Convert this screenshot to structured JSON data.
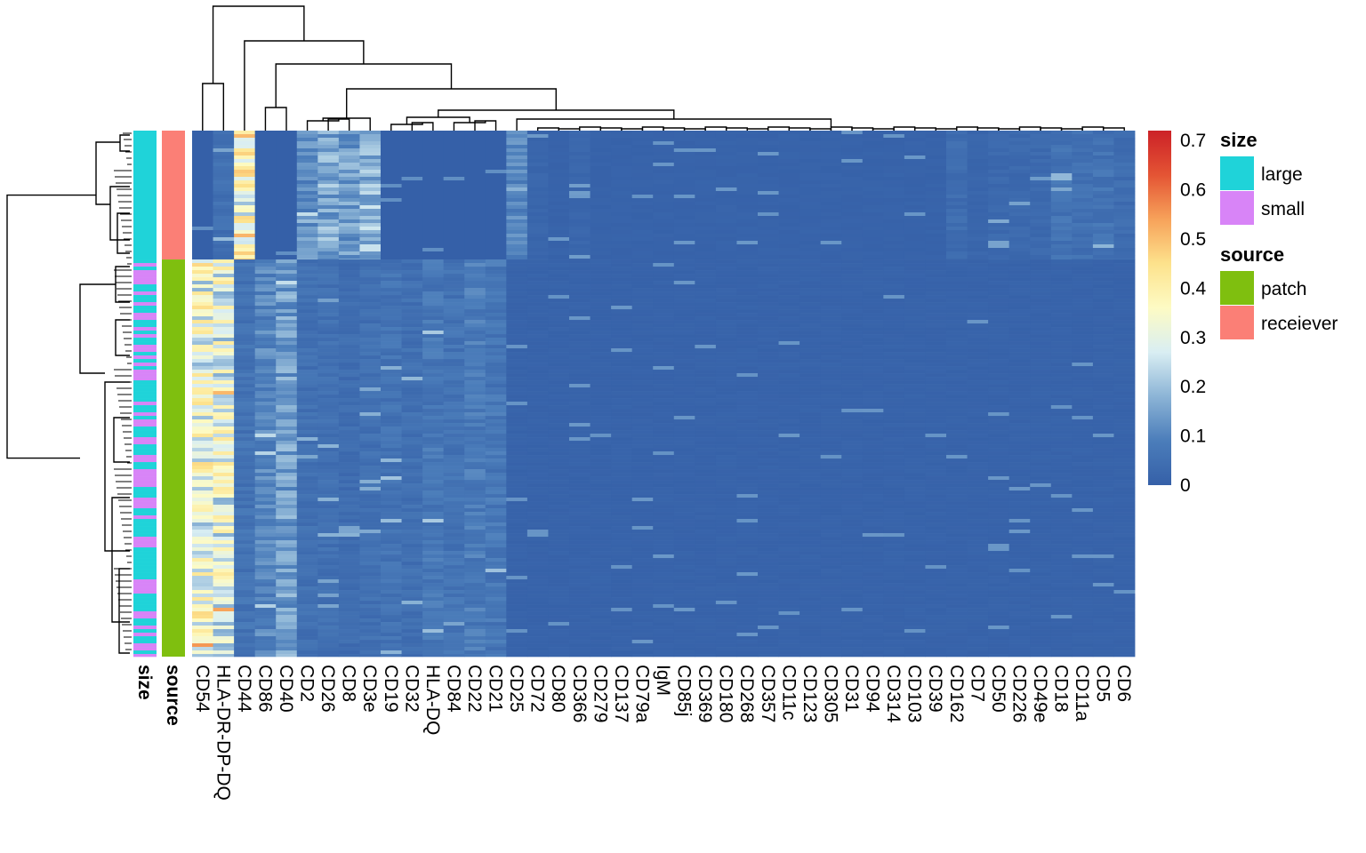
{
  "chart_data": {
    "type": "heatmap",
    "title": "",
    "xlabel": "",
    "ylabel": "",
    "columns": [
      "CD54",
      "HLA-DR-DP-DQ",
      "CD44",
      "CD86",
      "CD40",
      "CD2",
      "CD26",
      "CD8",
      "CD3e",
      "CD19",
      "CD32",
      "HLA-DQ",
      "CD84",
      "CD22",
      "CD21",
      "CD25",
      "CD72",
      "CD80",
      "CD366",
      "CD279",
      "CD137",
      "CD79a",
      "IgM",
      "CD85j",
      "CD369",
      "CD180",
      "CD268",
      "CD357",
      "CD11c",
      "CD123",
      "CD305",
      "CD31",
      "CD94",
      "CD314",
      "CD103",
      "CD39",
      "CD162",
      "CD7",
      "CD50",
      "CD226",
      "CD49e",
      "CD18",
      "CD11a",
      "CD5",
      "CD6"
    ],
    "row_groups": [
      {
        "source": "receiever",
        "size": "large",
        "fraction": 0.245,
        "column_means": [
          0.0,
          0.05,
          0.35,
          0.0,
          0.0,
          0.12,
          0.16,
          0.14,
          0.18,
          0.0,
          0.0,
          0.0,
          0.0,
          0.0,
          0.0,
          0.1,
          0.02,
          0.01,
          0.02,
          0.01,
          0.01,
          0.01,
          0.01,
          0.01,
          0.01,
          0.01,
          0.01,
          0.01,
          0.01,
          0.01,
          0.01,
          0.01,
          0.01,
          0.01,
          0.01,
          0.01,
          0.04,
          0.02,
          0.03,
          0.03,
          0.03,
          0.06,
          0.05,
          0.06,
          0.04
        ]
      },
      {
        "source": "patch",
        "size": "mixed",
        "fraction": 0.755,
        "column_means": [
          0.32,
          0.3,
          0.06,
          0.1,
          0.14,
          0.05,
          0.05,
          0.04,
          0.05,
          0.06,
          0.05,
          0.07,
          0.06,
          0.08,
          0.07,
          0.01,
          0.01,
          0.01,
          0.01,
          0.01,
          0.01,
          0.01,
          0.01,
          0.01,
          0.01,
          0.01,
          0.01,
          0.01,
          0.01,
          0.01,
          0.01,
          0.01,
          0.01,
          0.01,
          0.01,
          0.01,
          0.01,
          0.01,
          0.01,
          0.01,
          0.01,
          0.01,
          0.01,
          0.01,
          0.01
        ]
      }
    ],
    "row_annotations": [
      "size",
      "source"
    ],
    "color_scale": {
      "min": 0,
      "max": 0.72,
      "ticks": [
        "0",
        "0.1",
        "0.2",
        "0.3",
        "0.4",
        "0.5",
        "0.6",
        "0.7"
      ],
      "tick_values": [
        0,
        0.1,
        0.2,
        0.3,
        0.4,
        0.5,
        0.6,
        0.7
      ],
      "colors": [
        "#3560a8",
        "#4b7dba",
        "#8cb4d6",
        "#d9eef3",
        "#fdfbc4",
        "#fde28c",
        "#f7a25a",
        "#e45434",
        "#cc2127"
      ]
    },
    "legend": {
      "position": "right",
      "groups": [
        {
          "title": "size",
          "items": [
            {
              "label": "large",
              "color": "#1fd3d9"
            },
            {
              "label": "small",
              "color": "#d884f7"
            }
          ]
        },
        {
          "title": "source",
          "items": [
            {
              "label": "patch",
              "color": "#7fbf0f"
            },
            {
              "label": "receiever",
              "color": "#fb7f76"
            }
          ]
        }
      ]
    }
  }
}
